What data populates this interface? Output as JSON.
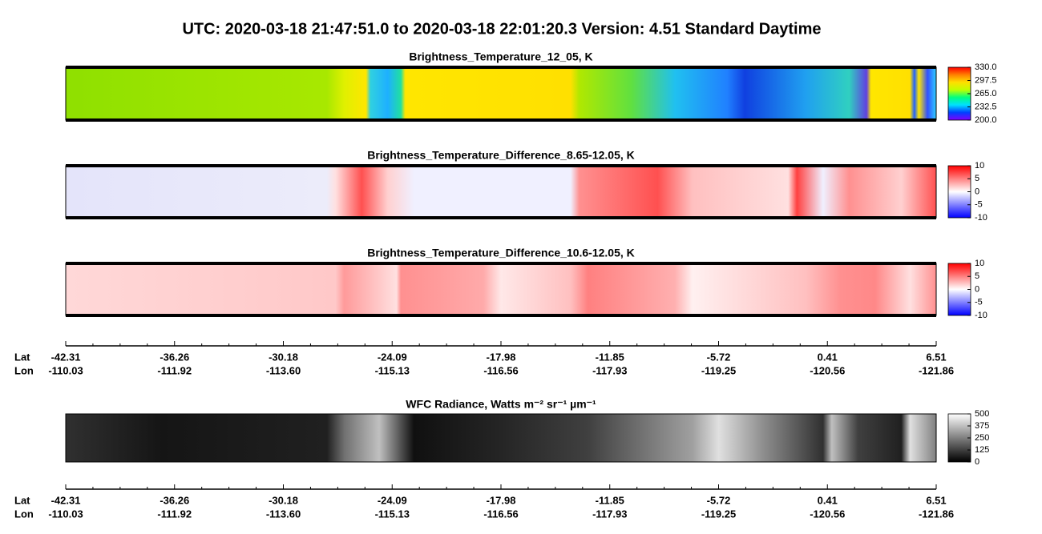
{
  "title": "UTC:  2020-03-18   21:47:51.0  to  2020-03-18   22:01:20.3    Version: 4.51  Standard Daytime",
  "panels": [
    {
      "title": "Brightness_Temperature_12_05, K",
      "colorbar": {
        "lim": [
          200,
          330
        ],
        "colors": [
          "#8000ff",
          "#0040ff",
          "#00e0ff",
          "#00ff80",
          "#c0ff00",
          "#ffe000",
          "#ff8000",
          "#ff0000"
        ],
        "ticks": [
          {
            "value": 330,
            "label": "330.0"
          },
          297.5,
          {
            "value": 265,
            "label": "265.0"
          },
          232.5,
          {
            "value": 200,
            "label": "200.0"
          }
        ]
      }
    },
    {
      "title": "Brightness_Temperature_Difference_8.65-12.05, K",
      "colorbar": {
        "lim": [
          -10,
          10
        ],
        "colors": [
          "#0000ff",
          "#8080ff",
          "#ffffff",
          "#ff8080",
          "#ff0000"
        ],
        "ticks": [
          10,
          5,
          0,
          -5,
          -10
        ]
      }
    },
    {
      "title": "Brightness_Temperature_Difference_10.6-12.05, K",
      "colorbar": {
        "lim": [
          -10,
          10
        ],
        "colors": [
          "#0000ff",
          "#8080ff",
          "#ffffff",
          "#ff8080",
          "#ff0000"
        ],
        "ticks": [
          10,
          5,
          0,
          -5,
          -10
        ]
      }
    },
    {
      "title": "WFC Radiance, Watts m⁻² sr⁻¹ µm⁻¹",
      "colorbar": {
        "lim": [
          0,
          500
        ],
        "colors": [
          "#000000",
          "#ffffff"
        ],
        "ticks": [
          500,
          375,
          250,
          125,
          0
        ]
      }
    }
  ],
  "axis": {
    "lat_label": "Lat",
    "lon_label": "Lon",
    "lat": [
      -42.31,
      -36.26,
      -30.18,
      -24.09,
      -17.98,
      -11.85,
      -5.72,
      0.41,
      6.51
    ],
    "lon": [
      -110.03,
      -111.92,
      {
        "value": -113.6,
        "label": "-113.60"
      },
      -115.13,
      -116.56,
      -117.93,
      -119.25,
      -120.56,
      -121.86
    ]
  }
}
